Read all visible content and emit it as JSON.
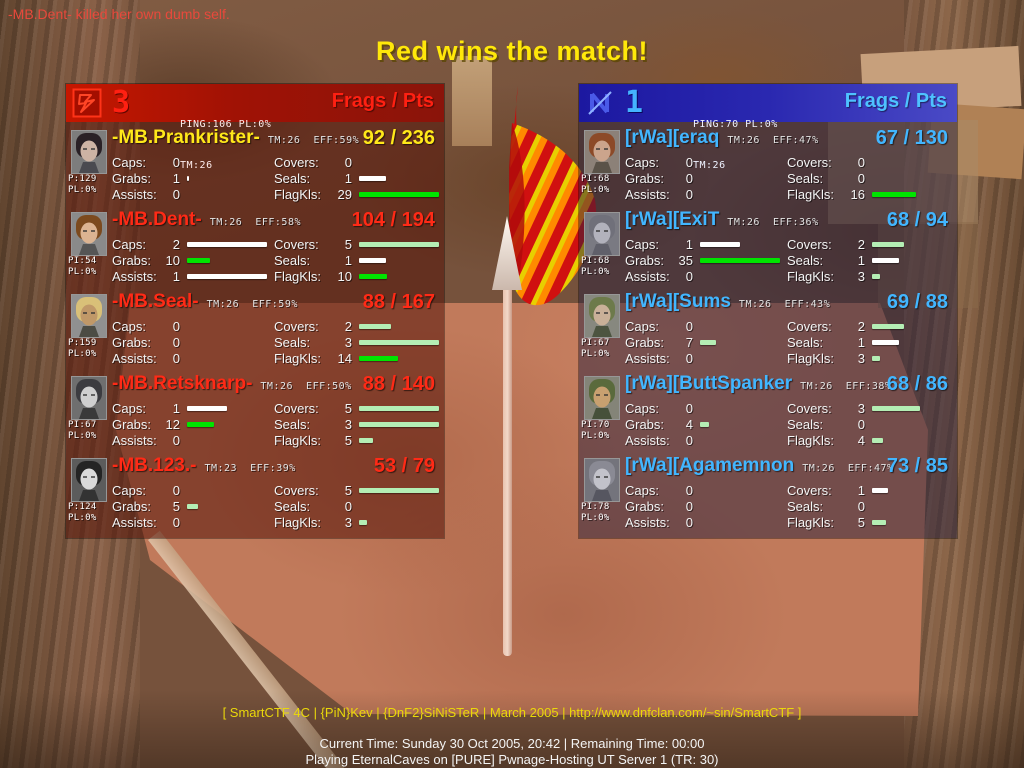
{
  "hud": {
    "kill_feed": "-MB.Dent- killed her own dumb self.",
    "title": "Red wins the match!",
    "footer_credit": "[ SmartCTF 4C | {PiN}Kev | {DnF2}SiNiSTeR | March 2005 | http://www.dnfclan.com/~sin/SmartCTF ]",
    "footer_time": "Current Time: Sunday 30 Oct 2005, 20:42 | Remaining Time: 00:00",
    "footer_server": "Playing EternalCaves on [PURE] Pwnage-Hosting UT Server 1 (TR: 30)"
  },
  "colors": {
    "red_accent": "#ff2a16",
    "blue_accent": "#42b6ff",
    "highlight_yellow": "#ffe81a",
    "bar_white": "#ffffff",
    "bar_bright": "#00e400",
    "bar_pale": "#b4eeb4"
  },
  "stat_labels": {
    "caps": "Caps:",
    "covers": "Covers:",
    "grabs": "Grabs:",
    "seals": "Seals:",
    "assists": "Assists:",
    "flagkls": "FlagKls:"
  },
  "stat_order": [
    "caps",
    "covers",
    "grabs",
    "seals",
    "assists",
    "flagkls"
  ],
  "stat_max": {
    "caps": 2,
    "grabs": 35,
    "assists": 1,
    "covers": 5,
    "seals": 3,
    "flagkls": 29
  },
  "teams": [
    {
      "id": "red",
      "score": "3",
      "ping": "PING:106 PL:0%",
      "tm": "TM:26",
      "frags_pts_label": "Frags / Pts",
      "players": [
        {
          "name": "-MB.Prankrister-",
          "highlight": true,
          "ping": [
            "P:129",
            "PL:0%"
          ],
          "tm_eff": "TM:26  EFF:59%",
          "frags": "92",
          "pts": "236",
          "avatar": {
            "bg": "#7d7d7d",
            "hair": "#2a2126",
            "skin": "#cdb3a4",
            "shirt": "#4a4a50"
          },
          "stats": {
            "caps": {
              "v": 0
            },
            "covers": {
              "v": 0
            },
            "grabs": {
              "v": 1,
              "bar": "white"
            },
            "seals": {
              "v": 1,
              "bar": "white"
            },
            "assists": {
              "v": 0
            },
            "flagkls": {
              "v": 29,
              "bar": "bright"
            }
          }
        },
        {
          "name": "-MB.Dent-",
          "highlight": false,
          "ping": [
            "PI:54",
            "PL:0%"
          ],
          "tm_eff": "TM:26  EFF:58%",
          "frags": "104",
          "pts": "194",
          "avatar": {
            "bg": "#8a8a8a",
            "hair": "#7c4a1e",
            "skin": "#dcb492",
            "shirt": "#555555"
          },
          "stats": {
            "caps": {
              "v": 2,
              "bar": "white"
            },
            "covers": {
              "v": 5,
              "bar": "pale"
            },
            "grabs": {
              "v": 10,
              "bar": "bright"
            },
            "seals": {
              "v": 1,
              "bar": "white"
            },
            "assists": {
              "v": 1,
              "bar": "white"
            },
            "flagkls": {
              "v": 10,
              "bar": "bright"
            }
          }
        },
        {
          "name": "-MB.Seal-",
          "highlight": false,
          "ping": [
            "P:159",
            "PL:0%"
          ],
          "tm_eff": "TM:26  EFF:59%",
          "frags": "88",
          "pts": "167",
          "avatar": {
            "bg": "#909090",
            "hair": "#d9c078",
            "skin": "#c09868",
            "shirt": "#4c4c44"
          },
          "stats": {
            "caps": {
              "v": 0
            },
            "covers": {
              "v": 2,
              "bar": "pale"
            },
            "grabs": {
              "v": 0
            },
            "seals": {
              "v": 3,
              "bar": "pale"
            },
            "assists": {
              "v": 0
            },
            "flagkls": {
              "v": 14,
              "bar": "bright"
            }
          }
        },
        {
          "name": "-MB.Retsknarp-",
          "highlight": false,
          "ping": [
            "PI:67",
            "PL:0%"
          ],
          "tm_eff": "TM:26  EFF:50%",
          "frags": "88",
          "pts": "140",
          "avatar": {
            "bg": "#6f6f6f",
            "hair": "#3c3c40",
            "skin": "#cfcfcf",
            "shirt": "#3a3a3a"
          },
          "stats": {
            "caps": {
              "v": 1,
              "bar": "white"
            },
            "covers": {
              "v": 5,
              "bar": "pale"
            },
            "grabs": {
              "v": 12,
              "bar": "bright"
            },
            "seals": {
              "v": 3,
              "bar": "pale"
            },
            "assists": {
              "v": 0
            },
            "flagkls": {
              "v": 5,
              "bar": "pale"
            }
          }
        },
        {
          "name": "-MB.123.-",
          "highlight": false,
          "ping": [
            "P:124",
            "PL:0%"
          ],
          "tm_eff": "TM:23  EFF:39%",
          "frags": "53",
          "pts": "79",
          "avatar": {
            "bg": "#5c5c5c",
            "hair": "#242424",
            "skin": "#dadada",
            "shirt": "#333333"
          },
          "stats": {
            "caps": {
              "v": 0
            },
            "covers": {
              "v": 5,
              "bar": "pale"
            },
            "grabs": {
              "v": 5,
              "bar": "pale"
            },
            "seals": {
              "v": 0
            },
            "assists": {
              "v": 0
            },
            "flagkls": {
              "v": 3,
              "bar": "pale"
            }
          }
        }
      ]
    },
    {
      "id": "blue",
      "score": "1",
      "ping": "PING:70 PL:0%",
      "tm": "TM:26",
      "frags_pts_label": "Frags / Pts",
      "players": [
        {
          "name": "[rWa][eraq",
          "highlight": false,
          "ping": [
            "PI:68",
            "PL:0%"
          ],
          "tm_eff": "TM:26  EFF:47%",
          "frags": "67",
          "pts": "130",
          "avatar": {
            "bg": "#8c8178",
            "hair": "#8c4a28",
            "skin": "#cba48c",
            "shirt": "#5a5248"
          },
          "stats": {
            "caps": {
              "v": 0
            },
            "covers": {
              "v": 0
            },
            "grabs": {
              "v": 0
            },
            "seals": {
              "v": 0
            },
            "assists": {
              "v": 0
            },
            "flagkls": {
              "v": 16,
              "bar": "bright"
            }
          }
        },
        {
          "name": "[rWa][ExiT",
          "highlight": false,
          "ping": [
            "PI:68",
            "PL:0%"
          ],
          "tm_eff": "TM:26  EFF:36%",
          "frags": "68",
          "pts": "94",
          "avatar": {
            "bg": "#7a7a82",
            "hair": "#70707a",
            "skin": "#b2b2bc",
            "shirt": "#60606a"
          },
          "stats": {
            "caps": {
              "v": 1,
              "bar": "white"
            },
            "covers": {
              "v": 2,
              "bar": "pale"
            },
            "grabs": {
              "v": 35,
              "bar": "bright"
            },
            "seals": {
              "v": 1,
              "bar": "white"
            },
            "assists": {
              "v": 0
            },
            "flagkls": {
              "v": 3,
              "bar": "pale"
            }
          }
        },
        {
          "name": "[rWa][Sums",
          "highlight": false,
          "ping": [
            "PI:67",
            "PL:0%"
          ],
          "tm_eff": "TM:26  EFF:43%",
          "frags": "69",
          "pts": "88",
          "avatar": {
            "bg": "#87887f",
            "hair": "#6d7a4a",
            "skin": "#c9b098",
            "shirt": "#4c5440"
          },
          "stats": {
            "caps": {
              "v": 0
            },
            "covers": {
              "v": 2,
              "bar": "pale"
            },
            "grabs": {
              "v": 7,
              "bar": "pale"
            },
            "seals": {
              "v": 1,
              "bar": "white"
            },
            "assists": {
              "v": 0
            },
            "flagkls": {
              "v": 3,
              "bar": "pale"
            }
          }
        },
        {
          "name": "[rWa][ButtSpanker",
          "highlight": false,
          "ping": [
            "PI:70",
            "PL:0%"
          ],
          "tm_eff": "TM:26  EFF:38%",
          "frags": "68",
          "pts": "86",
          "avatar": {
            "bg": "#848478",
            "hair": "#5a6a3c",
            "skin": "#c8a070",
            "shirt": "#46503a"
          },
          "stats": {
            "caps": {
              "v": 0
            },
            "covers": {
              "v": 3,
              "bar": "pale"
            },
            "grabs": {
              "v": 4,
              "bar": "pale"
            },
            "seals": {
              "v": 0
            },
            "assists": {
              "v": 0
            },
            "flagkls": {
              "v": 4,
              "bar": "pale"
            }
          }
        },
        {
          "name": "[rWa][Agamemnon",
          "highlight": false,
          "ping": [
            "PI:78",
            "PL:0%"
          ],
          "tm_eff": "TM:26  EFF:47%",
          "frags": "73",
          "pts": "85",
          "avatar": {
            "bg": "#74747c",
            "hair": "#8a8a94",
            "skin": "#c2c2ca",
            "shirt": "#565660"
          },
          "stats": {
            "caps": {
              "v": 0
            },
            "covers": {
              "v": 1,
              "bar": "white"
            },
            "grabs": {
              "v": 0
            },
            "seals": {
              "v": 0
            },
            "assists": {
              "v": 0
            },
            "flagkls": {
              "v": 5,
              "bar": "pale"
            }
          }
        }
      ]
    }
  ]
}
